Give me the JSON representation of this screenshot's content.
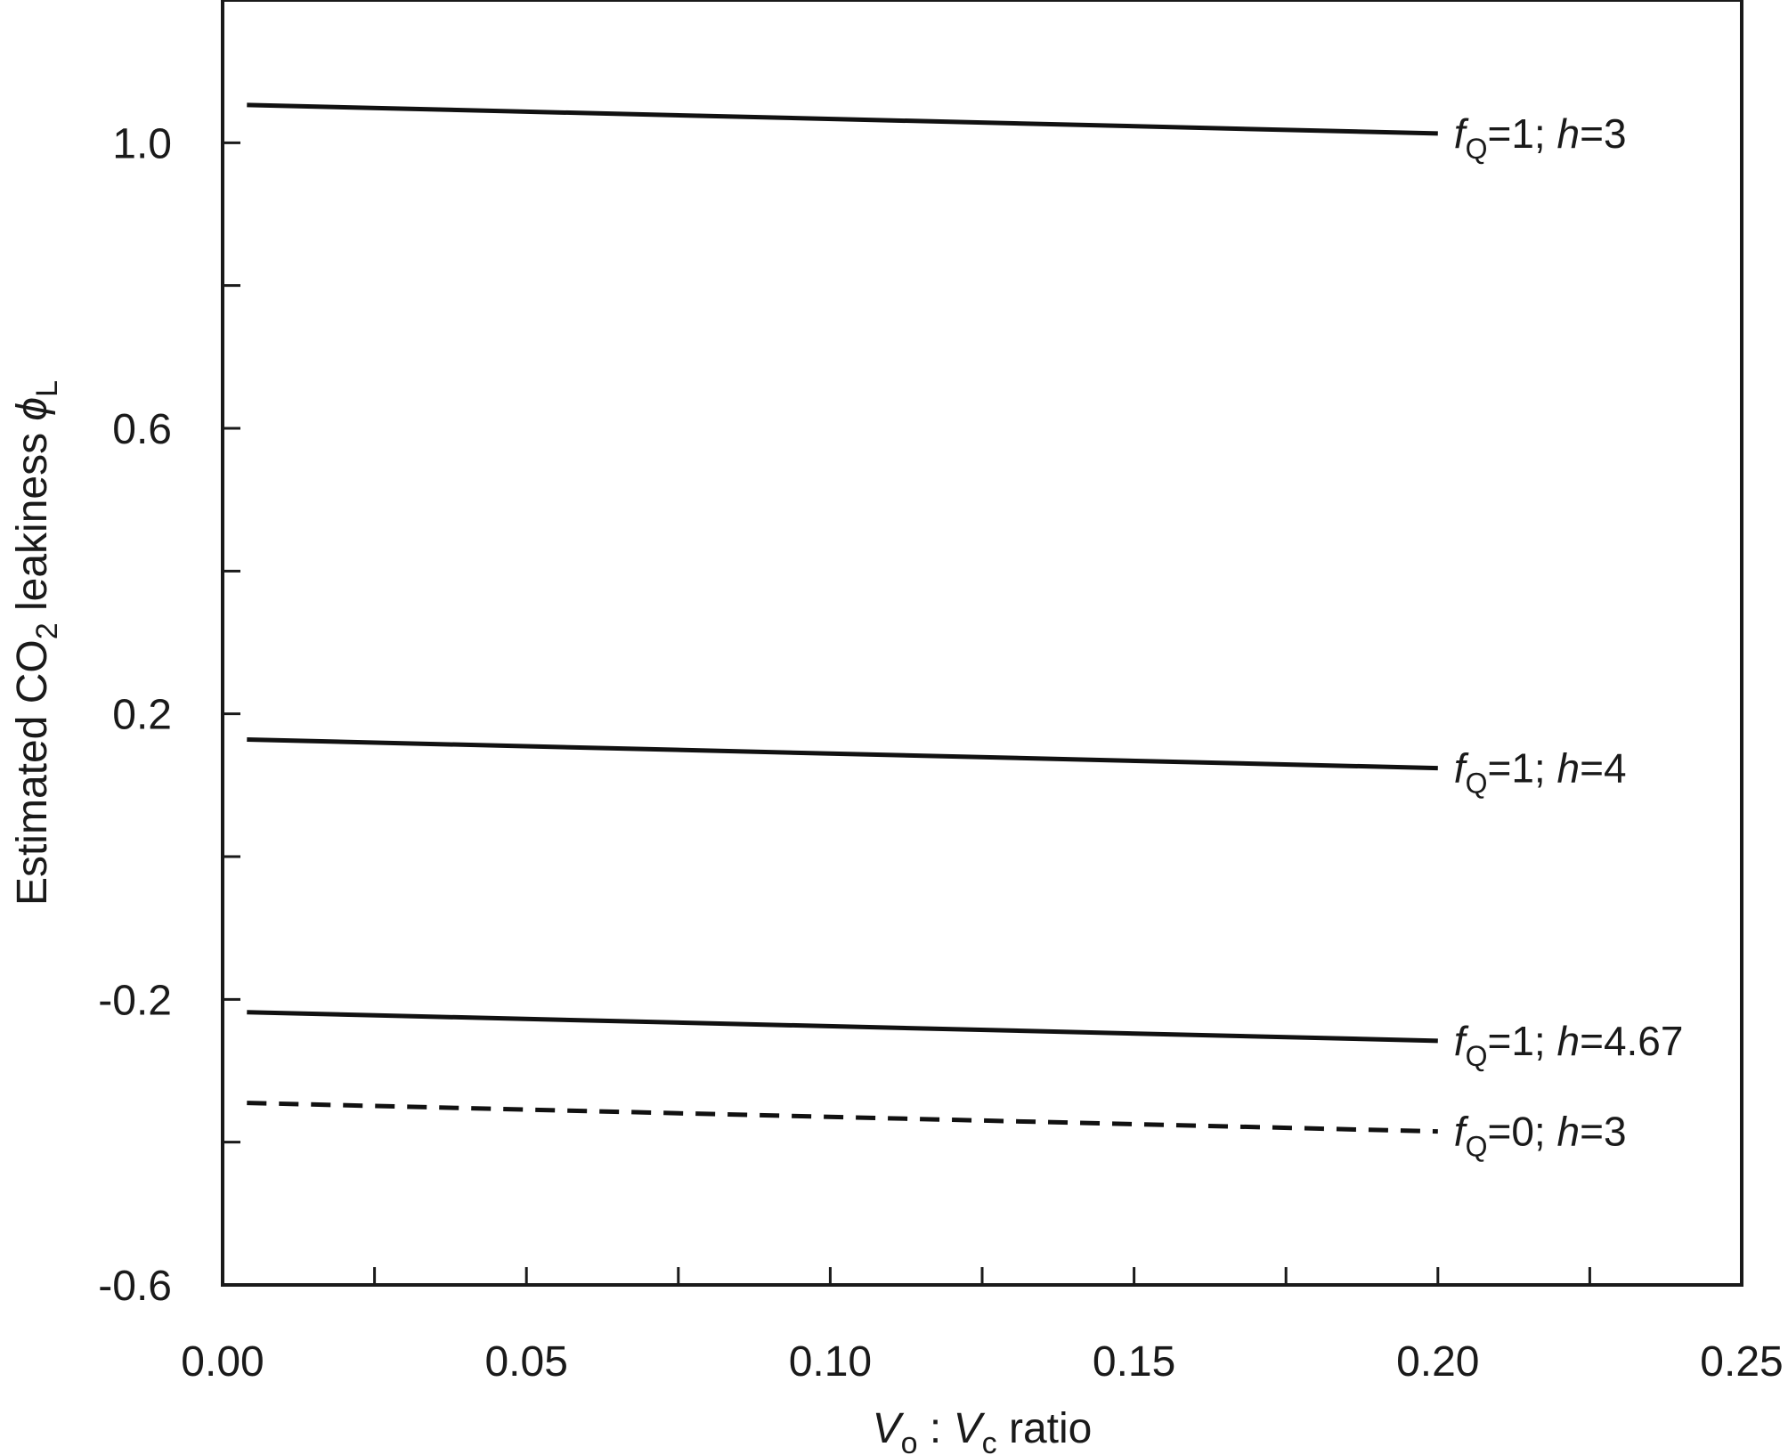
{
  "chart_data": {
    "type": "line",
    "xlabel": {
      "parts": [
        {
          "t": "V",
          "i": true
        },
        {
          "t": "o",
          "sub": true
        },
        {
          "t": " : "
        },
        {
          "t": "V",
          "i": true
        },
        {
          "t": "c",
          "sub": true
        },
        {
          "t": " ratio"
        }
      ]
    },
    "ylabel": {
      "parts": [
        {
          "t": "Estimated CO"
        },
        {
          "t": "2",
          "sub": true
        },
        {
          "t": " leakiness "
        },
        {
          "t": "ϕ",
          "i": true
        },
        {
          "t": "L",
          "sub": true
        }
      ]
    },
    "xlim": [
      0.0,
      0.25
    ],
    "ylim": [
      -0.6,
      1.2
    ],
    "x_ticks": [
      "0.00",
      "0.05",
      "0.10",
      "0.15",
      "0.20",
      "0.25"
    ],
    "x_minor_ticks": [
      0.025,
      0.075,
      0.125,
      0.175,
      0.225
    ],
    "y_ticks": [
      "-0.6",
      "-0.2",
      "0.2",
      "0.6",
      "1.0"
    ],
    "y_tick_values": [
      -0.6,
      -0.2,
      0.2,
      0.6,
      1.0
    ],
    "y_minor_ticks": [
      -0.4,
      0.0,
      0.4,
      0.8
    ],
    "grid": false,
    "legend": "inline labels at right end of each line",
    "series": [
      {
        "name": "fQ=1; h=3",
        "style": "solid",
        "label_parts": [
          {
            "t": "f",
            "i": true
          },
          {
            "t": "Q",
            "sub": true
          },
          {
            "t": "=1; "
          },
          {
            "t": "h",
            "i": true
          },
          {
            "t": "=3"
          }
        ],
        "x": [
          0.004,
          0.2
        ],
        "y": [
          1.053,
          1.013
        ]
      },
      {
        "name": "fQ=1; h=4",
        "style": "solid",
        "label_parts": [
          {
            "t": "f",
            "i": true
          },
          {
            "t": "Q",
            "sub": true
          },
          {
            "t": "=1; "
          },
          {
            "t": "h",
            "i": true
          },
          {
            "t": "=4"
          }
        ],
        "x": [
          0.004,
          0.2
        ],
        "y": [
          0.164,
          0.124
        ]
      },
      {
        "name": "fQ=1; h=4.67",
        "style": "solid",
        "label_parts": [
          {
            "t": "f",
            "i": true
          },
          {
            "t": "Q",
            "sub": true
          },
          {
            "t": "=1; "
          },
          {
            "t": "h",
            "i": true
          },
          {
            "t": "=4.67"
          }
        ],
        "x": [
          0.004,
          0.2
        ],
        "y": [
          -0.218,
          -0.258
        ]
      },
      {
        "name": "fQ=0; h=3",
        "style": "dashed",
        "label_parts": [
          {
            "t": "f",
            "i": true
          },
          {
            "t": "Q",
            "sub": true
          },
          {
            "t": "=0; "
          },
          {
            "t": "h",
            "i": true
          },
          {
            "t": "=3"
          }
        ],
        "x": [
          0.004,
          0.2
        ],
        "y": [
          -0.345,
          -0.385
        ]
      }
    ],
    "colors": {
      "line": "#111111",
      "axis": "#1a1a1a"
    }
  }
}
